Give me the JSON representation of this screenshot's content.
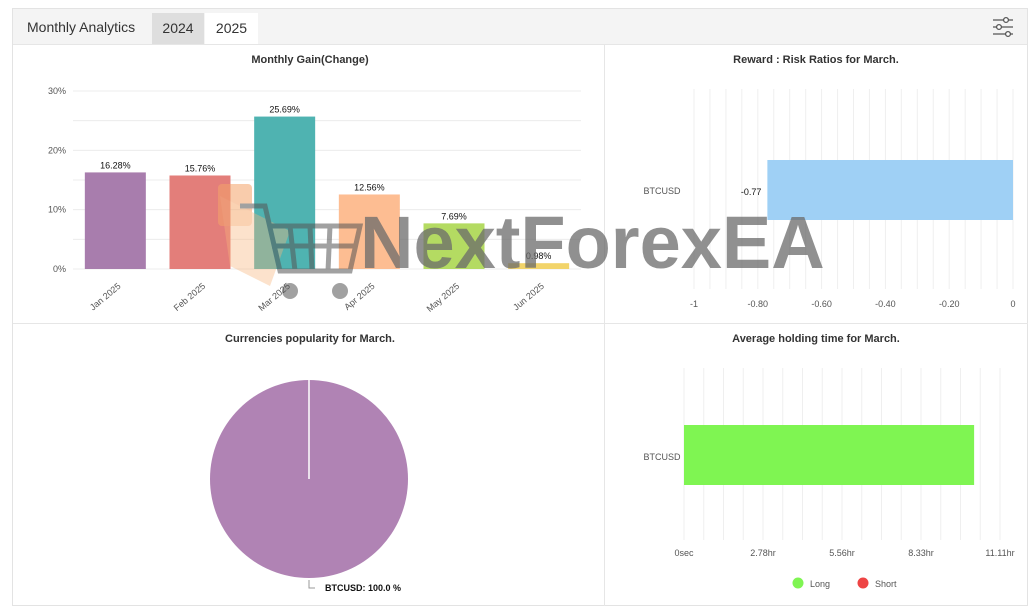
{
  "header": {
    "title": "Monthly Analytics",
    "tabs": [
      {
        "label": "2024",
        "active": false
      },
      {
        "label": "2025",
        "active": true
      }
    ],
    "settings_icon": "sliders-icon"
  },
  "watermark": {
    "text": "NextForexEA",
    "icon": "shopping-cart-icon"
  },
  "chart_data": [
    {
      "type": "bar",
      "title": "Monthly Gain(Change)",
      "categories": [
        "Jan 2025",
        "Feb 2025",
        "Mar 2025",
        "Apr 2025",
        "May 2025",
        "Jun 2025"
      ],
      "values": [
        16.28,
        15.76,
        25.69,
        12.56,
        7.69,
        0.98
      ],
      "labels": [
        "16.28%",
        "15.76%",
        "25.69%",
        "12.56%",
        "7.69%",
        "0.98%"
      ],
      "colors": [
        "#a87dad",
        "#e37e7a",
        "#4fb3b1",
        "#fdbd92",
        "#b4db62",
        "#f2d46a"
      ],
      "yticks": [
        "0%",
        "10%",
        "20%",
        "30%"
      ],
      "ylim": [
        0,
        30
      ]
    },
    {
      "type": "bar",
      "orientation": "horizontal",
      "title": "Reward : Risk Ratios for March.",
      "categories": [
        "BTCUSD"
      ],
      "values": [
        -0.77
      ],
      "labels": [
        "-0.77"
      ],
      "color": "#9fd0f5",
      "xticks": [
        "-1",
        "-0.80",
        "-0.60",
        "-0.40",
        "-0.20",
        "0"
      ],
      "xlim": [
        -1,
        0
      ]
    },
    {
      "type": "pie",
      "title": "Currencies popularity for March.",
      "slices": [
        {
          "label": "BTCUSD",
          "value": 100.0,
          "color": "#b083b4"
        }
      ],
      "slice_label": "BTCUSD: 100.0 %"
    },
    {
      "type": "bar",
      "orientation": "horizontal",
      "title": "Average holding time for March.",
      "categories": [
        "BTCUSD"
      ],
      "series": [
        {
          "name": "Long",
          "values": [
            10.2
          ],
          "color": "#7ff552"
        },
        {
          "name": "Short",
          "values": [
            0
          ],
          "color": "#ee4444"
        }
      ],
      "xticks": [
        "0sec",
        "2.78hr",
        "5.56hr",
        "8.33hr",
        "11.11hr"
      ],
      "xlim": [
        0,
        11.11
      ],
      "legend": "bottom"
    }
  ]
}
